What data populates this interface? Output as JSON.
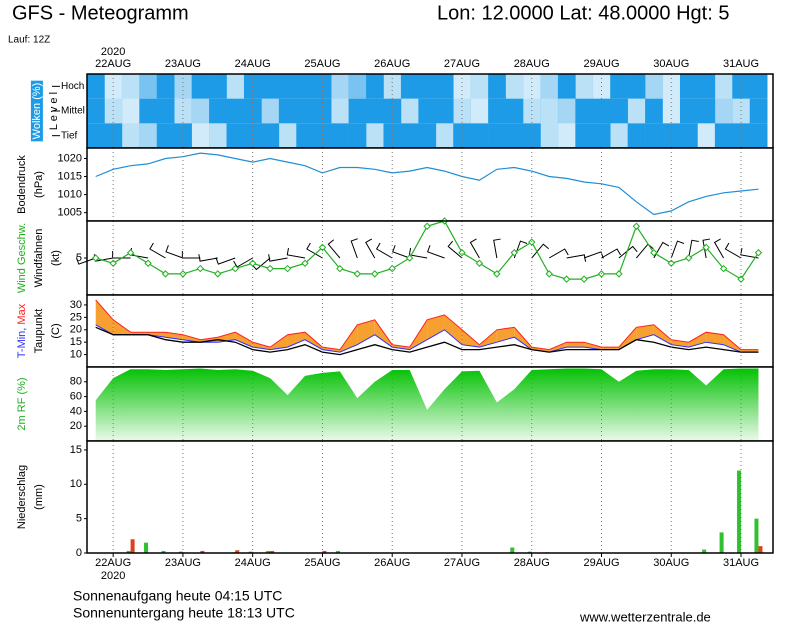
{
  "header": {
    "title": "GFS - Meteogramm",
    "location": "Lon: 12.0000 Lat: 48.0000 Hgt: 5",
    "run": "Lauf: 12Z"
  },
  "footer": {
    "sunrise": "Sonnenaufgang heute 04:15 UTC",
    "sunset": "Sonnenuntergang heute 18:13 UTC",
    "source": "www.wetterzentrale.de"
  },
  "time": {
    "year": "2020",
    "x": [
      -6,
      0,
      6,
      12,
      18,
      24,
      30,
      36,
      42,
      48,
      54,
      60,
      66,
      72,
      78,
      84,
      90,
      96,
      102,
      108,
      114,
      120,
      126,
      132,
      138,
      144,
      150,
      156,
      162,
      168,
      174,
      180,
      186,
      192,
      198,
      204,
      210,
      216,
      222
    ],
    "xlim": [
      -9,
      227
    ],
    "xticks": [
      {
        "value": 0,
        "label": "22AUG"
      },
      {
        "value": 24,
        "label": "23AUG"
      },
      {
        "value": 48,
        "label": "24AUG"
      },
      {
        "value": 72,
        "label": "25AUG"
      },
      {
        "value": 96,
        "label": "26AUG"
      },
      {
        "value": 120,
        "label": "27AUG"
      },
      {
        "value": 144,
        "label": "28AUG"
      },
      {
        "value": 168,
        "label": "29AUG"
      },
      {
        "value": 192,
        "label": "30AUG"
      },
      {
        "value": 216,
        "label": "31AUG"
      }
    ]
  },
  "chart_data": [
    {
      "type": "cloud",
      "ylabels": [
        [
          {
            "text": "Wolken (%)",
            "color": "#ffffff",
            "background": "#1e9be6"
          }
        ],
        [
          {
            "text": "L e v e l",
            "color": "#000000"
          }
        ]
      ],
      "levels": [
        "Hoch",
        "Mittel",
        "Tief"
      ],
      "series": [
        {
          "color": "#1e9be6",
          "values": [
            100,
            20,
            30,
            60,
            100,
            40,
            100,
            100,
            30,
            100,
            100,
            100,
            100,
            100,
            40,
            60,
            100,
            30,
            100,
            100,
            100,
            20,
            30,
            100,
            30,
            20,
            40,
            100,
            30,
            20,
            100,
            100,
            40,
            20,
            100,
            100,
            30,
            100,
            100
          ]
        },
        {
          "color": "#1e9be6",
          "values": [
            100,
            30,
            20,
            100,
            100,
            30,
            40,
            100,
            100,
            100,
            40,
            100,
            100,
            100,
            30,
            100,
            100,
            100,
            30,
            100,
            100,
            30,
            20,
            100,
            100,
            30,
            30,
            40,
            100,
            100,
            100,
            30,
            100,
            20,
            100,
            100,
            40,
            30,
            100
          ]
        },
        {
          "color": "#1e9be6",
          "values": [
            100,
            100,
            30,
            40,
            100,
            100,
            20,
            30,
            100,
            100,
            100,
            30,
            100,
            100,
            100,
            100,
            30,
            100,
            100,
            100,
            30,
            100,
            100,
            100,
            100,
            100,
            30,
            20,
            100,
            100,
            30,
            100,
            100,
            100,
            100,
            20,
            100,
            100,
            100
          ]
        }
      ]
    },
    {
      "type": "line",
      "ylabels": [
        [
          {
            "text": "Bodendruck",
            "color": "#000000"
          }
        ],
        [
          {
            "text": "(hPa)",
            "color": "#000000"
          }
        ]
      ],
      "ylim": [
        1002.7,
        1022.9
      ],
      "yticks": [
        1005,
        1010,
        1015,
        1020
      ],
      "series": [
        {
          "color": "#1f8fd6",
          "values": [
            1015,
            1017,
            1018,
            1018.5,
            1020,
            1020.5,
            1021.5,
            1021,
            1020,
            1019,
            1020,
            1019,
            1018,
            1016,
            1017.5,
            1017.5,
            1017,
            1016,
            1016.5,
            1017.5,
            1016.5,
            1015,
            1014,
            1017,
            1017.5,
            1016.5,
            1015,
            1014.5,
            1013.5,
            1013,
            1012,
            1008,
            1004.5,
            1005.5,
            1008,
            1009.5,
            1010.5,
            1011,
            1011.5
          ]
        }
      ]
    },
    {
      "type": "wind",
      "ylabels": [
        [
          {
            "text": "Wind Geschw.",
            "color": "#20b020"
          }
        ],
        [
          {
            "text": "Windfahnen",
            "color": "#000000"
          }
        ],
        [
          {
            "text": "(kt)",
            "color": "#000000"
          }
        ]
      ],
      "ylim": [
        -2,
        12
      ],
      "yticks": [
        5
      ],
      "series": [
        {
          "color": "#20b020",
          "values": [
            5,
            4,
            6,
            4,
            2,
            2,
            3,
            2,
            3,
            4,
            3,
            3,
            4,
            7,
            3,
            2,
            2,
            3,
            5,
            11,
            12,
            6,
            4,
            2,
            6,
            8,
            2,
            1,
            1,
            2,
            2,
            11,
            6,
            4,
            5,
            7,
            3,
            1,
            6
          ]
        }
      ],
      "wind_direction": {
        "color": "#000000",
        "values": [
          250,
          260,
          270,
          280,
          300,
          290,
          270,
          260,
          250,
          240,
          230,
          260,
          280,
          300,
          320,
          340,
          330,
          300,
          290,
          280,
          290,
          310,
          330,
          350,
          20,
          40,
          60,
          80,
          70,
          60,
          50,
          40,
          30,
          20,
          10,
          350,
          330,
          300,
          280
        ]
      }
    },
    {
      "type": "temperature",
      "ylabels": [
        [
          {
            "text": "T-Min, ",
            "color": "#3030ff"
          },
          {
            "text": "Max",
            "color": "#ff2020"
          }
        ],
        [
          {
            "text": "Taupunkt",
            "color": "#000000"
          }
        ],
        [
          {
            "text": "(C)",
            "color": "#000000"
          }
        ]
      ],
      "ylim": [
        5,
        34
      ],
      "yticks": [
        10,
        15,
        20,
        25,
        30
      ],
      "band_color": "#f5a030",
      "series": [
        {
          "color": "#3030ff",
          "values": [
            22,
            18,
            18,
            18,
            17,
            16,
            15,
            15,
            16,
            13,
            12,
            13,
            16,
            12,
            11,
            14,
            18,
            13,
            12,
            16,
            20,
            14,
            13,
            15,
            17,
            12,
            11,
            13,
            13,
            12,
            12,
            16,
            18,
            14,
            13,
            15,
            14,
            11,
            11
          ]
        },
        {
          "color": "#ff2020",
          "values": [
            32,
            24,
            19,
            19,
            19,
            18,
            16,
            17,
            19,
            15,
            13,
            18,
            19,
            13,
            12,
            22,
            24,
            14,
            13,
            24,
            26,
            20,
            14,
            20,
            21,
            13,
            12,
            15,
            15,
            13,
            13,
            21,
            22,
            16,
            15,
            19,
            18,
            12,
            12
          ]
        },
        {
          "color": "#000000",
          "values": [
            21,
            18,
            18,
            18,
            16,
            15,
            15,
            16,
            15,
            12,
            11,
            12,
            14,
            11,
            10,
            12,
            14,
            12,
            11,
            13,
            15,
            12,
            12,
            13,
            14,
            12,
            11,
            12,
            12,
            12,
            12,
            16,
            15,
            13,
            12,
            13,
            12,
            11,
            11
          ]
        }
      ]
    },
    {
      "type": "area",
      "ylabels": [
        [
          {
            "text": "2m RF (%)",
            "color": "#20b020"
          }
        ]
      ],
      "ylim": [
        0,
        100
      ],
      "yticks": [
        20,
        40,
        60,
        80
      ],
      "series": [
        {
          "color": "#00c000",
          "values": [
            55,
            85,
            97,
            97,
            96,
            97,
            98,
            96,
            97,
            95,
            85,
            62,
            88,
            92,
            94,
            58,
            80,
            96,
            96,
            42,
            70,
            94,
            95,
            52,
            70,
            96,
            97,
            98,
            98,
            97,
            80,
            95,
            97,
            97,
            96,
            75,
            97,
            98,
            98
          ]
        }
      ]
    },
    {
      "type": "bar",
      "ylabels": [
        [
          {
            "text": "Niederschlag",
            "color": "#000000"
          }
        ],
        [
          {
            "text": "(mm)",
            "color": "#000000"
          }
        ]
      ],
      "ylim": [
        0,
        16.3
      ],
      "yticks": [
        0,
        5,
        10,
        15
      ],
      "series": [
        {
          "color": "#30c030",
          "values": [
            0,
            0,
            0.3,
            1.5,
            0.3,
            0.2,
            0,
            0,
            0.1,
            0.2,
            0.3,
            0,
            0,
            0,
            0.3,
            0,
            0,
            0,
            0,
            0,
            0,
            0,
            0,
            0,
            0.8,
            0.2,
            0.1,
            0,
            0,
            0,
            0,
            0,
            0,
            0,
            0,
            0.5,
            3,
            12,
            5
          ]
        },
        {
          "color": "#e04020",
          "values": [
            0,
            0,
            2,
            0,
            0,
            0,
            0.3,
            0,
            0.4,
            0,
            0.3,
            0,
            0,
            0.3,
            0,
            0,
            0,
            0,
            0,
            0,
            0,
            0,
            0,
            0,
            0,
            0,
            0,
            0,
            0,
            0,
            0,
            0,
            0,
            0,
            0,
            0,
            0,
            0,
            1
          ]
        }
      ]
    }
  ]
}
